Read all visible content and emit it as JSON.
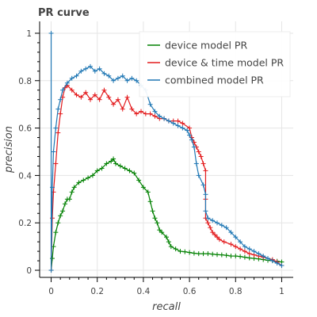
{
  "chart_data": {
    "type": "line",
    "title": "PR curve",
    "xlabel": "recall",
    "ylabel": "precision",
    "xlim": [
      -0.05,
      1.05
    ],
    "ylim": [
      -0.03,
      1.05
    ],
    "x_ticks": [
      0,
      0.2,
      0.4,
      0.6,
      0.8,
      1
    ],
    "x_tick_labels": [
      "0",
      "0.2",
      "0.4",
      "0.6",
      "0.8",
      "1"
    ],
    "y_ticks": [
      0,
      0.2,
      0.4,
      0.6,
      0.8,
      1
    ],
    "y_tick_labels": [
      "0",
      "0.2",
      "0.4",
      "0.6",
      "0.8",
      "1"
    ],
    "grid": true,
    "legend_position": "top-right",
    "series": [
      {
        "name": "device model PR",
        "color": "#008000",
        "points": [
          [
            0,
            0
          ],
          [
            0.005,
            0.05
          ],
          [
            0.01,
            0.1
          ],
          [
            0.02,
            0.16
          ],
          [
            0.03,
            0.2
          ],
          [
            0.04,
            0.23
          ],
          [
            0.05,
            0.25
          ],
          [
            0.06,
            0.28
          ],
          [
            0.07,
            0.3
          ],
          [
            0.08,
            0.3
          ],
          [
            0.09,
            0.33
          ],
          [
            0.1,
            0.35
          ],
          [
            0.12,
            0.37
          ],
          [
            0.14,
            0.38
          ],
          [
            0.16,
            0.39
          ],
          [
            0.18,
            0.4
          ],
          [
            0.2,
            0.42
          ],
          [
            0.22,
            0.43
          ],
          [
            0.24,
            0.45
          ],
          [
            0.26,
            0.46
          ],
          [
            0.27,
            0.47
          ],
          [
            0.28,
            0.45
          ],
          [
            0.3,
            0.44
          ],
          [
            0.32,
            0.43
          ],
          [
            0.34,
            0.42
          ],
          [
            0.36,
            0.41
          ],
          [
            0.38,
            0.38
          ],
          [
            0.4,
            0.35
          ],
          [
            0.42,
            0.33
          ],
          [
            0.43,
            0.29
          ],
          [
            0.44,
            0.25
          ],
          [
            0.45,
            0.22
          ],
          [
            0.46,
            0.2
          ],
          [
            0.47,
            0.17
          ],
          [
            0.48,
            0.16
          ],
          [
            0.5,
            0.14
          ],
          [
            0.51,
            0.12
          ],
          [
            0.52,
            0.1
          ],
          [
            0.54,
            0.09
          ],
          [
            0.56,
            0.08
          ],
          [
            0.58,
            0.078
          ],
          [
            0.6,
            0.075
          ],
          [
            0.62,
            0.072
          ],
          [
            0.64,
            0.07
          ],
          [
            0.66,
            0.07
          ],
          [
            0.68,
            0.07
          ],
          [
            0.7,
            0.068
          ],
          [
            0.72,
            0.066
          ],
          [
            0.74,
            0.065
          ],
          [
            0.76,
            0.063
          ],
          [
            0.78,
            0.06
          ],
          [
            0.8,
            0.06
          ],
          [
            0.82,
            0.058
          ],
          [
            0.84,
            0.055
          ],
          [
            0.86,
            0.052
          ],
          [
            0.88,
            0.05
          ],
          [
            0.9,
            0.048
          ],
          [
            0.92,
            0.045
          ],
          [
            0.94,
            0.042
          ],
          [
            0.96,
            0.04
          ],
          [
            0.98,
            0.038
          ],
          [
            1,
            0.035
          ]
        ]
      },
      {
        "name": "device & time model PR",
        "color": "#e31a1c",
        "points": [
          [
            0,
            0
          ],
          [
            0.005,
            0.22
          ],
          [
            0.01,
            0.33
          ],
          [
            0.02,
            0.45
          ],
          [
            0.03,
            0.58
          ],
          [
            0.04,
            0.66
          ],
          [
            0.05,
            0.73
          ],
          [
            0.06,
            0.77
          ],
          [
            0.07,
            0.78
          ],
          [
            0.09,
            0.76
          ],
          [
            0.11,
            0.74
          ],
          [
            0.13,
            0.73
          ],
          [
            0.15,
            0.75
          ],
          [
            0.17,
            0.72
          ],
          [
            0.19,
            0.74
          ],
          [
            0.21,
            0.72
          ],
          [
            0.23,
            0.76
          ],
          [
            0.25,
            0.73
          ],
          [
            0.27,
            0.7
          ],
          [
            0.29,
            0.72
          ],
          [
            0.31,
            0.68
          ],
          [
            0.33,
            0.73
          ],
          [
            0.35,
            0.68
          ],
          [
            0.37,
            0.66
          ],
          [
            0.39,
            0.67
          ],
          [
            0.41,
            0.66
          ],
          [
            0.43,
            0.66
          ],
          [
            0.45,
            0.65
          ],
          [
            0.47,
            0.64
          ],
          [
            0.49,
            0.64
          ],
          [
            0.51,
            0.63
          ],
          [
            0.53,
            0.63
          ],
          [
            0.55,
            0.63
          ],
          [
            0.57,
            0.62
          ],
          [
            0.6,
            0.6
          ],
          [
            0.61,
            0.56
          ],
          [
            0.62,
            0.54
          ],
          [
            0.63,
            0.52
          ],
          [
            0.64,
            0.5
          ],
          [
            0.65,
            0.48
          ],
          [
            0.66,
            0.45
          ],
          [
            0.67,
            0.42
          ],
          [
            0.67,
            0.3
          ],
          [
            0.67,
            0.22
          ],
          [
            0.68,
            0.2
          ],
          [
            0.69,
            0.18
          ],
          [
            0.7,
            0.16
          ],
          [
            0.71,
            0.15
          ],
          [
            0.72,
            0.14
          ],
          [
            0.73,
            0.13
          ],
          [
            0.75,
            0.12
          ],
          [
            0.78,
            0.11
          ],
          [
            0.8,
            0.1
          ],
          [
            0.82,
            0.09
          ],
          [
            0.84,
            0.08
          ],
          [
            0.86,
            0.07
          ],
          [
            0.88,
            0.065
          ],
          [
            0.9,
            0.06
          ],
          [
            0.92,
            0.055
          ],
          [
            0.94,
            0.05
          ],
          [
            0.96,
            0.045
          ],
          [
            0.98,
            0.035
          ],
          [
            1,
            0.02
          ]
        ]
      },
      {
        "name": "combined model PR",
        "color": "#1f77b4",
        "points": [
          [
            0,
            1
          ],
          [
            0,
            0
          ],
          [
            0.005,
            0.35
          ],
          [
            0.01,
            0.5
          ],
          [
            0.02,
            0.6
          ],
          [
            0.03,
            0.68
          ],
          [
            0.04,
            0.72
          ],
          [
            0.05,
            0.76
          ],
          [
            0.07,
            0.79
          ],
          [
            0.09,
            0.81
          ],
          [
            0.11,
            0.82
          ],
          [
            0.13,
            0.84
          ],
          [
            0.15,
            0.85
          ],
          [
            0.17,
            0.86
          ],
          [
            0.19,
            0.84
          ],
          [
            0.21,
            0.85
          ],
          [
            0.23,
            0.83
          ],
          [
            0.25,
            0.82
          ],
          [
            0.27,
            0.8
          ],
          [
            0.29,
            0.81
          ],
          [
            0.31,
            0.82
          ],
          [
            0.33,
            0.8
          ],
          [
            0.35,
            0.81
          ],
          [
            0.37,
            0.8
          ],
          [
            0.39,
            0.78
          ],
          [
            0.41,
            0.76
          ],
          [
            0.43,
            0.7
          ],
          [
            0.45,
            0.67
          ],
          [
            0.47,
            0.65
          ],
          [
            0.49,
            0.64
          ],
          [
            0.51,
            0.63
          ],
          [
            0.53,
            0.62
          ],
          [
            0.55,
            0.61
          ],
          [
            0.57,
            0.6
          ],
          [
            0.59,
            0.59
          ],
          [
            0.6,
            0.57
          ],
          [
            0.61,
            0.55
          ],
          [
            0.62,
            0.52
          ],
          [
            0.63,
            0.45
          ],
          [
            0.64,
            0.4
          ],
          [
            0.66,
            0.36
          ],
          [
            0.67,
            0.32
          ],
          [
            0.67,
            0.25
          ],
          [
            0.68,
            0.22
          ],
          [
            0.7,
            0.21
          ],
          [
            0.72,
            0.2
          ],
          [
            0.74,
            0.19
          ],
          [
            0.76,
            0.18
          ],
          [
            0.78,
            0.16
          ],
          [
            0.8,
            0.14
          ],
          [
            0.82,
            0.12
          ],
          [
            0.84,
            0.1
          ],
          [
            0.86,
            0.09
          ],
          [
            0.88,
            0.08
          ],
          [
            0.9,
            0.07
          ],
          [
            0.92,
            0.06
          ],
          [
            0.94,
            0.05
          ],
          [
            0.96,
            0.04
          ],
          [
            0.98,
            0.03
          ],
          [
            1,
            0.02
          ]
        ]
      }
    ]
  }
}
